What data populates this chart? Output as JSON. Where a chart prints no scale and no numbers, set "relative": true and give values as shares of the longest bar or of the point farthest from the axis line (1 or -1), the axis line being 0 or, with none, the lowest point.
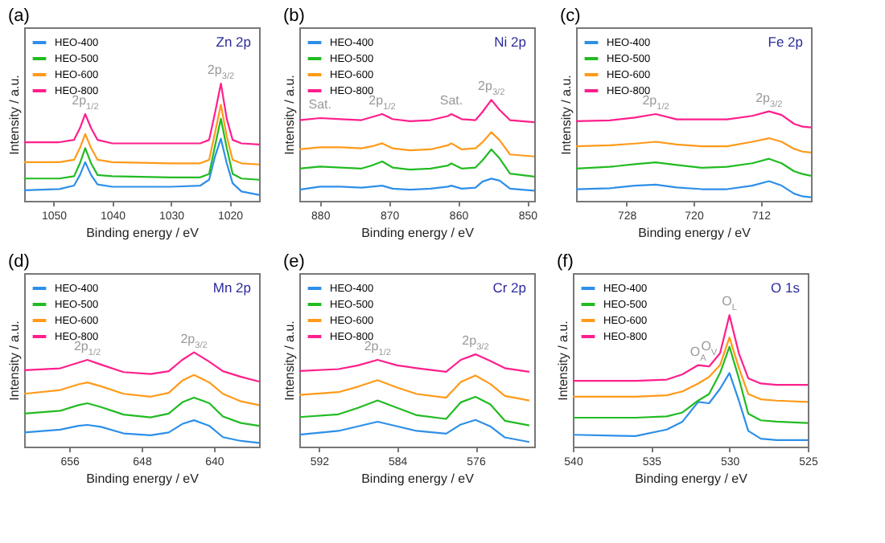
{
  "chart_data": [
    {
      "type": "line",
      "title": "(a)",
      "xlabel": "Binding energy / eV",
      "ylabel": "Intensity / a.u.",
      "relative": true,
      "legend": "top left",
      "xlim": [
        1055,
        1015
      ],
      "xticks": [
        1050,
        1040,
        1030,
        1020
      ],
      "x": [
        1055,
        1049,
        1046.5,
        1045.5,
        1044.6,
        1043.6,
        1042.5,
        1040,
        1030,
        1025,
        1023.5,
        1022.5,
        1021.5,
        1020.5,
        1019.5,
        1018,
        1015
      ],
      "series": [
        {
          "name": "HEO-400",
          "color": "#2e8fe8",
          "values": [
            0.09,
            0.1,
            0.13,
            0.22,
            0.33,
            0.22,
            0.14,
            0.12,
            0.12,
            0.13,
            0.18,
            0.38,
            0.53,
            0.32,
            0.15,
            0.08,
            0.05
          ]
        },
        {
          "name": "HEO-500",
          "color": "#22bb22",
          "values": [
            0.19,
            0.19,
            0.21,
            0.32,
            0.45,
            0.32,
            0.22,
            0.21,
            0.2,
            0.2,
            0.23,
            0.47,
            0.7,
            0.45,
            0.23,
            0.19,
            0.18
          ]
        },
        {
          "name": "HEO-600",
          "color": "#ff9a1a",
          "values": [
            0.33,
            0.33,
            0.35,
            0.45,
            0.57,
            0.45,
            0.35,
            0.33,
            0.32,
            0.32,
            0.35,
            0.58,
            0.82,
            0.55,
            0.35,
            0.32,
            0.31
          ]
        },
        {
          "name": "HEO-800",
          "color": "#ff1f8c",
          "values": [
            0.5,
            0.5,
            0.52,
            0.62,
            0.74,
            0.62,
            0.52,
            0.49,
            0.49,
            0.49,
            0.52,
            0.75,
            1.0,
            0.7,
            0.52,
            0.49,
            0.48
          ]
        }
      ],
      "annotations": [
        "Zn 2p",
        {
          "text": "2p$_{1/2}$",
          "x": 1044.6,
          "y": 0.74
        },
        {
          "text": "2p$_{3/2}$",
          "x": 1021.5,
          "y": 1.0
        }
      ]
    },
    {
      "type": "line",
      "title": "(b)",
      "xlabel": "Binding energy / eV",
      "ylabel": "Intensity / a.u.",
      "relative": true,
      "legend": "top left",
      "xlim": [
        883,
        849
      ],
      "xticks": [
        880,
        870,
        860,
        850
      ],
      "x": [
        883,
        880,
        877,
        874,
        872.5,
        871,
        869.5,
        867,
        864,
        861.5,
        861,
        859.5,
        857.5,
        856.5,
        855.2,
        854,
        852.5,
        849
      ],
      "series": [
        {
          "name": "HEO-400",
          "color": "#2e8fe8",
          "values": [
            0.11,
            0.14,
            0.14,
            0.13,
            0.14,
            0.15,
            0.12,
            0.11,
            0.12,
            0.14,
            0.15,
            0.12,
            0.13,
            0.19,
            0.22,
            0.2,
            0.12,
            0.1
          ]
        },
        {
          "name": "HEO-500",
          "color": "#22bb22",
          "values": [
            0.32,
            0.34,
            0.33,
            0.32,
            0.35,
            0.39,
            0.33,
            0.31,
            0.32,
            0.35,
            0.37,
            0.32,
            0.33,
            0.4,
            0.51,
            0.42,
            0.27,
            0.24
          ]
        },
        {
          "name": "HEO-600",
          "color": "#ff9a1a",
          "values": [
            0.51,
            0.53,
            0.53,
            0.52,
            0.54,
            0.57,
            0.52,
            0.5,
            0.51,
            0.55,
            0.57,
            0.51,
            0.52,
            0.58,
            0.68,
            0.6,
            0.46,
            0.44
          ]
        },
        {
          "name": "HEO-800",
          "color": "#ff1f8c",
          "values": [
            0.8,
            0.82,
            0.81,
            0.8,
            0.83,
            0.86,
            0.81,
            0.79,
            0.8,
            0.84,
            0.86,
            0.81,
            0.8,
            0.88,
            1.0,
            0.9,
            0.8,
            0.78
          ]
        }
      ],
      "annotations": [
        "Ni 2p",
        {
          "text": "Sat.",
          "x": 880,
          "y": 0.82
        },
        {
          "text": "2p$_{1/2}$",
          "x": 871,
          "y": 0.86
        },
        {
          "text": "Sat.",
          "x": 861,
          "y": 0.86
        },
        {
          "text": "2p$_{3/2}$",
          "x": 855.2,
          "y": 1.0
        }
      ]
    },
    {
      "type": "line",
      "title": "(c)",
      "xlabel": "Binding energy / eV",
      "ylabel": "Intensity / a.u.",
      "relative": true,
      "legend": "top left",
      "xlim": [
        734,
        706
      ],
      "xticks": [
        728,
        720,
        712
      ],
      "x": [
        734,
        730,
        727,
        724.5,
        722,
        719,
        716,
        713,
        711,
        709.5,
        708,
        707,
        706
      ],
      "series": [
        {
          "name": "HEO-400",
          "color": "#2e8fe8",
          "values": [
            0.13,
            0.14,
            0.17,
            0.18,
            0.15,
            0.13,
            0.13,
            0.17,
            0.22,
            0.17,
            0.08,
            0.05,
            0.04
          ]
        },
        {
          "name": "HEO-500",
          "color": "#22bb22",
          "values": [
            0.36,
            0.38,
            0.41,
            0.43,
            0.4,
            0.37,
            0.38,
            0.42,
            0.47,
            0.42,
            0.33,
            0.3,
            0.28
          ]
        },
        {
          "name": "HEO-600",
          "color": "#ff9a1a",
          "values": [
            0.61,
            0.62,
            0.64,
            0.66,
            0.63,
            0.61,
            0.61,
            0.66,
            0.7,
            0.66,
            0.58,
            0.55,
            0.54
          ]
        },
        {
          "name": "HEO-800",
          "color": "#ff1f8c",
          "values": [
            0.89,
            0.9,
            0.93,
            0.97,
            0.91,
            0.91,
            0.91,
            0.95,
            1.0,
            0.96,
            0.86,
            0.83,
            0.82
          ]
        }
      ],
      "annotations": [
        "Fe 2p",
        {
          "text": "2p$_{1/2}$",
          "x": 724.5,
          "y": 0.97
        },
        {
          "text": "2p$_{3/2}$",
          "x": 711,
          "y": 1.0
        }
      ]
    },
    {
      "type": "line",
      "title": "(d)",
      "xlabel": "Binding energy / eV",
      "ylabel": "Intensity / a.u.",
      "relative": true,
      "legend": "top left",
      "xlim": [
        661,
        635
      ],
      "xticks": [
        656,
        648,
        640
      ],
      "x": [
        661,
        657,
        655,
        654,
        652.5,
        650,
        647,
        645,
        643.5,
        642.2,
        640.5,
        639,
        637,
        635
      ],
      "series": [
        {
          "name": "HEO-400",
          "color": "#2e8fe8",
          "values": [
            0.15,
            0.18,
            0.22,
            0.23,
            0.21,
            0.14,
            0.12,
            0.15,
            0.24,
            0.28,
            0.22,
            0.1,
            0.06,
            0.04
          ]
        },
        {
          "name": "HEO-500",
          "color": "#22bb22",
          "values": [
            0.35,
            0.38,
            0.44,
            0.46,
            0.42,
            0.34,
            0.31,
            0.35,
            0.47,
            0.52,
            0.46,
            0.32,
            0.25,
            0.22
          ]
        },
        {
          "name": "HEO-600",
          "color": "#ff9a1a",
          "values": [
            0.56,
            0.6,
            0.66,
            0.68,
            0.64,
            0.56,
            0.53,
            0.57,
            0.7,
            0.76,
            0.68,
            0.56,
            0.48,
            0.44
          ]
        },
        {
          "name": "HEO-800",
          "color": "#ff1f8c",
          "values": [
            0.81,
            0.83,
            0.89,
            0.92,
            0.87,
            0.79,
            0.77,
            0.8,
            0.92,
            1.0,
            0.9,
            0.8,
            0.74,
            0.69
          ]
        }
      ],
      "annotations": [
        "Mn 2p",
        {
          "text": "2p$_{1/2}$",
          "x": 654,
          "y": 0.92
        },
        {
          "text": "2p$_{3/2}$",
          "x": 642.2,
          "y": 1.0
        }
      ]
    },
    {
      "type": "line",
      "title": "(e)",
      "xlabel": "Binding energy / eV",
      "ylabel": "Intensity / a.u.",
      "relative": true,
      "legend": "top left",
      "xlim": [
        594,
        570
      ],
      "xticks": [
        592,
        584,
        576
      ],
      "x": [
        594,
        590,
        588,
        586,
        584,
        582,
        579,
        577.5,
        576,
        574.5,
        573,
        570.5
      ],
      "series": [
        {
          "name": "HEO-400",
          "color": "#2e8fe8",
          "values": [
            0.13,
            0.17,
            0.22,
            0.27,
            0.22,
            0.17,
            0.14,
            0.24,
            0.29,
            0.22,
            0.1,
            0.05
          ]
        },
        {
          "name": "HEO-500",
          "color": "#22bb22",
          "values": [
            0.32,
            0.35,
            0.42,
            0.5,
            0.42,
            0.34,
            0.3,
            0.48,
            0.54,
            0.46,
            0.28,
            0.23
          ]
        },
        {
          "name": "HEO-600",
          "color": "#ff9a1a",
          "values": [
            0.56,
            0.59,
            0.65,
            0.72,
            0.64,
            0.57,
            0.53,
            0.7,
            0.77,
            0.68,
            0.55,
            0.5
          ]
        },
        {
          "name": "HEO-800",
          "color": "#ff1f8c",
          "values": [
            0.82,
            0.84,
            0.88,
            0.94,
            0.88,
            0.85,
            0.81,
            0.94,
            1.0,
            0.93,
            0.85,
            0.81
          ]
        }
      ],
      "annotations": [
        "Cr 2p",
        {
          "text": "2p$_{1/2}$",
          "x": 586,
          "y": 0.94
        },
        {
          "text": "2p$_{3/2}$",
          "x": 576,
          "y": 1.0
        }
      ]
    },
    {
      "type": "line",
      "title": "(f)",
      "xlabel": "Binding energy / eV",
      "ylabel": "Intensity / a.u.",
      "relative": true,
      "legend": "top left",
      "xlim": [
        540,
        525
      ],
      "xticks": [
        540,
        535,
        530,
        525
      ],
      "x": [
        540,
        536,
        534,
        533,
        532,
        531.3,
        530.6,
        530,
        529.4,
        528.8,
        528,
        527,
        525
      ],
      "series": [
        {
          "name": "HEO-400",
          "color": "#2e8fe8",
          "values": [
            0.09,
            0.08,
            0.13,
            0.19,
            0.34,
            0.33,
            0.44,
            0.56,
            0.35,
            0.12,
            0.06,
            0.05,
            0.05
          ]
        },
        {
          "name": "HEO-500",
          "color": "#22bb22",
          "values": [
            0.22,
            0.22,
            0.23,
            0.26,
            0.35,
            0.4,
            0.56,
            0.76,
            0.52,
            0.25,
            0.2,
            0.19,
            0.18
          ]
        },
        {
          "name": "HEO-600",
          "color": "#ff9a1a",
          "values": [
            0.38,
            0.38,
            0.39,
            0.42,
            0.48,
            0.53,
            0.62,
            0.83,
            0.6,
            0.4,
            0.36,
            0.35,
            0.34
          ]
        },
        {
          "name": "HEO-800",
          "color": "#ff1f8c",
          "values": [
            0.5,
            0.5,
            0.51,
            0.55,
            0.62,
            0.61,
            0.71,
            1.0,
            0.71,
            0.52,
            0.48,
            0.47,
            0.47
          ]
        }
      ],
      "annotations": [
        "O 1s",
        {
          "text": "O$_{A}$",
          "x": 532,
          "y": 0.62
        },
        {
          "text": "O$_{V}$",
          "x": 531.3,
          "y": 0.66
        },
        {
          "text": "O$_{L}$",
          "x": 530,
          "y": 1.0
        }
      ]
    }
  ]
}
